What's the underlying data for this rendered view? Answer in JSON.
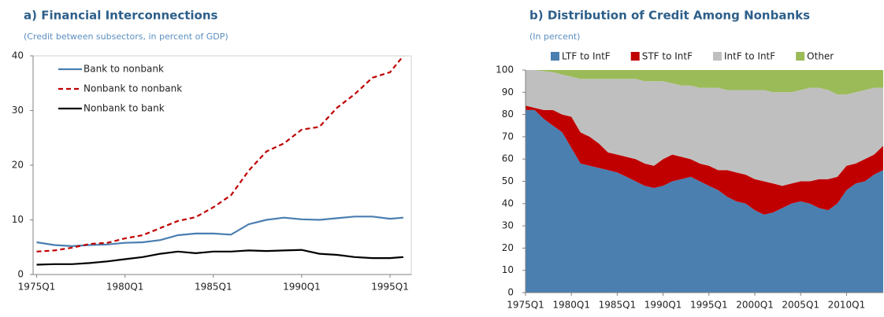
{
  "chart_data": [
    {
      "type": "line",
      "title": "a) Financial Interconnections",
      "subtitle": "(Credit between subsectors, in percent of GDP)",
      "x": [
        1975,
        1976,
        1977,
        1978,
        1979,
        1980,
        1981,
        1982,
        1983,
        1984,
        1985,
        1986,
        1987,
        1988,
        1989,
        1990,
        1991,
        1992,
        1993,
        1994,
        1995,
        1995.75
      ],
      "series": [
        {
          "name": "Bank to nonbank",
          "color": "#4a7eb0",
          "dash": false,
          "values": [
            5.9,
            5.4,
            5.2,
            5.4,
            5.5,
            5.8,
            5.9,
            6.3,
            7.2,
            7.5,
            7.5,
            7.3,
            9.2,
            10.0,
            10.4,
            10.1,
            10.0,
            10.3,
            10.6,
            10.6,
            10.2,
            10.4
          ]
        },
        {
          "name": "Nonbank to nonbank",
          "color": "#c00000",
          "dash": true,
          "values": [
            4.2,
            4.4,
            4.9,
            5.6,
            5.8,
            6.6,
            7.2,
            8.5,
            9.8,
            10.5,
            12.3,
            14.5,
            19,
            22.5,
            24,
            26.5,
            27,
            30.5,
            33,
            36,
            37,
            40
          ]
        },
        {
          "name": "Nonbank to bank",
          "color": "#000000",
          "dash": false,
          "values": [
            1.8,
            1.9,
            1.9,
            2.1,
            2.4,
            2.8,
            3.2,
            3.8,
            4.2,
            3.9,
            4.2,
            4.2,
            4.4,
            4.3,
            4.4,
            4.5,
            3.8,
            3.6,
            3.2,
            3.0,
            3.0,
            3.2
          ]
        }
      ],
      "xlim": [
        1974.8,
        1996.2
      ],
      "xticks": [
        {
          "value": 1975,
          "label": "1975Q1"
        },
        {
          "value": 1980,
          "label": "1980Q1"
        },
        {
          "value": 1985,
          "label": "1985Q1"
        },
        {
          "value": 1990,
          "label": "1990Q1"
        },
        {
          "value": 1995,
          "label": "1995Q1"
        }
      ],
      "ylim": [
        0,
        40
      ],
      "yticks": [
        0,
        10,
        20,
        30,
        40
      ],
      "legend": "upper-left"
    },
    {
      "type": "area",
      "title": "b) Distribution of Credit Among Nonbanks",
      "subtitle": "(In percent)",
      "x": [
        1975,
        1976,
        1977,
        1978,
        1979,
        1980,
        1981,
        1982,
        1983,
        1984,
        1985,
        1986,
        1987,
        1988,
        1989,
        1990,
        1991,
        1992,
        1993,
        1994,
        1995,
        1996,
        1997,
        1998,
        1999,
        2000,
        2001,
        2002,
        2003,
        2004,
        2005,
        2006,
        2007,
        2008,
        2009,
        2010,
        2011,
        2012,
        2013,
        2014
      ],
      "series": [
        {
          "name": "LTF to IntF",
          "color": "#4a7fb0",
          "values": [
            82,
            82,
            78,
            75,
            72,
            65,
            58,
            57,
            56,
            55,
            54,
            52,
            50,
            48,
            47,
            48,
            50,
            51,
            52,
            50,
            48,
            46,
            43,
            41,
            40,
            37,
            35,
            36,
            38,
            40,
            41,
            40,
            38,
            37,
            40,
            46,
            49,
            50,
            53,
            55
          ]
        },
        {
          "name": "STF to IntF",
          "color": "#c00000",
          "values": [
            2,
            1,
            4,
            7,
            8,
            14,
            14,
            13,
            11,
            8,
            8,
            9,
            10,
            10,
            10,
            12,
            12,
            10,
            8,
            8,
            9,
            9,
            12,
            13,
            13,
            14,
            15,
            13,
            10,
            9,
            9,
            10,
            13,
            14,
            12,
            11,
            9,
            10,
            9,
            11
          ]
        },
        {
          "name": "IntF to IntF",
          "color": "#bfbfbf",
          "values": [
            16,
            17,
            17.5,
            17,
            18,
            18,
            24,
            26,
            29,
            33,
            34,
            35,
            36,
            37,
            38,
            35,
            32,
            32,
            33,
            34,
            35,
            37,
            36,
            37,
            38,
            40,
            41,
            41,
            42,
            41,
            41,
            42,
            41,
            40,
            37,
            32,
            32,
            31,
            30,
            26
          ]
        },
        {
          "name": "Other",
          "color": "#9bbb59",
          "values": [
            0,
            0,
            0.5,
            1,
            2,
            3,
            4,
            4,
            4,
            4,
            4,
            4,
            4,
            5,
            5,
            5,
            6,
            7,
            7,
            8,
            8,
            8,
            9,
            9,
            9,
            9,
            9,
            10,
            10,
            10,
            9,
            8,
            8,
            9,
            11,
            11,
            10,
            9,
            8,
            8
          ]
        }
      ],
      "xlim": [
        1975,
        2014
      ],
      "xticks": [
        {
          "value": 1975,
          "label": "1975Q1"
        },
        {
          "value": 1980,
          "label": "1980Q1"
        },
        {
          "value": 1985,
          "label": "1985Q1"
        },
        {
          "value": 1990,
          "label": "1990Q1"
        },
        {
          "value": 1995,
          "label": "1995Q1"
        },
        {
          "value": 2000,
          "label": "2000Q1"
        },
        {
          "value": 2005,
          "label": "2005Q1"
        },
        {
          "value": 2010,
          "label": "2010Q1"
        }
      ],
      "ylim": [
        0,
        100
      ],
      "yticks": [
        0,
        10,
        20,
        30,
        40,
        50,
        60,
        70,
        80,
        90,
        100
      ],
      "legend": "top"
    }
  ]
}
